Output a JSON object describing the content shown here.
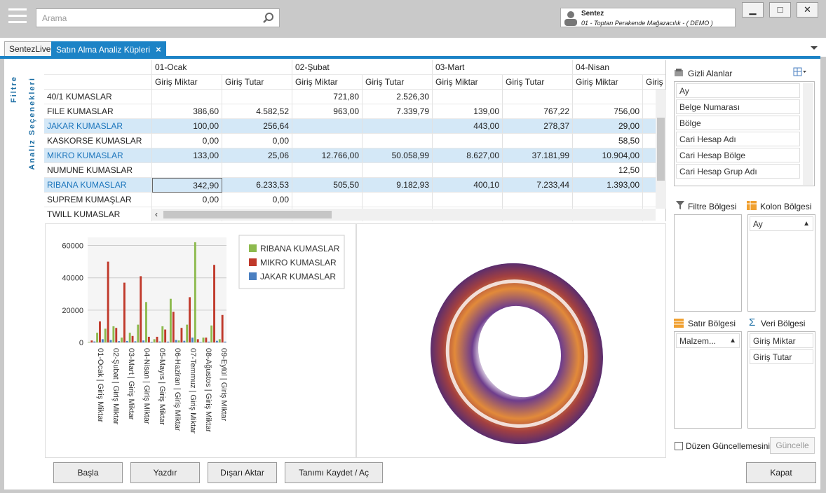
{
  "search": {
    "placeholder": "Arama"
  },
  "user": {
    "name": "Sentez",
    "company": "01 - Toptan Perakende Mağazacılık - ( DEMO )"
  },
  "window": {
    "minimize": "▁",
    "maximize": "□",
    "close": "✕"
  },
  "tabs": [
    {
      "label": "SentezLive"
    },
    {
      "label": "Satın Alma Analiz Küpleri",
      "close": "×"
    }
  ],
  "side": {
    "filter": "Filtre",
    "options": "Analiz Seçenekleri"
  },
  "grid": {
    "months": [
      "01-Ocak",
      "02-Şubat",
      "03-Mart",
      "04-Nisan"
    ],
    "subcols": [
      "Giriş Miktar",
      "Giriş Tutar",
      "Giriş Miktar",
      "Giriş Tutar",
      "Giriş Miktar",
      "Giriş Tutar",
      "Giriş Miktar",
      "Giriş T"
    ],
    "rows": [
      {
        "label": "40/1 KUMASLAR",
        "cells": [
          "",
          "",
          "721,80",
          "2.526,30",
          "",
          "",
          "",
          ""
        ]
      },
      {
        "label": "FILE KUMASLAR",
        "cells": [
          "386,60",
          "4.582,52",
          "963,00",
          "7.339,79",
          "139,00",
          "767,22",
          "756,00",
          ""
        ]
      },
      {
        "label": "JAKAR KUMASLAR",
        "cells": [
          "100,00",
          "256,64",
          "",
          "",
          "443,00",
          "278,37",
          "29,00",
          ""
        ]
      },
      {
        "label": "KASKORSE KUMASLAR",
        "cells": [
          "0,00",
          "0,00",
          "",
          "",
          "",
          "",
          "58,50",
          ""
        ]
      },
      {
        "label": "MIKRO KUMASLAR",
        "cells": [
          "133,00",
          "25,06",
          "12.766,00",
          "50.058,99",
          "8.627,00",
          "37.181,99",
          "10.904,00",
          ""
        ]
      },
      {
        "label": "NUMUNE KUMASLAR",
        "cells": [
          "",
          "",
          "",
          "",
          "",
          "",
          "12,50",
          ""
        ]
      },
      {
        "label": "RIBANA KUMASLAR",
        "cells": [
          "342,90",
          "6.233,53",
          "505,50",
          "9.182,93",
          "400,10",
          "7.233,44",
          "1.393,00",
          ""
        ]
      },
      {
        "label": "SUPREM KUMAŞLAR",
        "cells": [
          "0,00",
          "0,00",
          "",
          "",
          "",
          "",
          "",
          ""
        ]
      },
      {
        "label": "TWILL KUMASLAR",
        "cells": [
          "",
          "",
          "",
          "",
          "",
          "",
          "",
          ""
        ]
      }
    ]
  },
  "chart_data": {
    "type": "bar",
    "categories": [
      "01-Ocak | Giriş Miktar",
      "02-Şubat | Giriş Miktar",
      "03-Mart | Giriş Miktar",
      "04-Nisan | Giriş Miktar",
      "05-Mayıs | Giriş Miktar",
      "06-Haziran | Giriş Miktar",
      "07-Temmuz | Giriş Miktar",
      "08-Ağustos | Giriş Miktar",
      "09-Eylül | Giriş Miktar"
    ],
    "ylim": [
      0,
      65000
    ],
    "yticks": [
      "0",
      "20000",
      "40000",
      "60000"
    ],
    "grid": true,
    "legend_position": "right",
    "bar_colors": [
      "#8dba4e",
      "#c0392b",
      "#4a7fc1"
    ],
    "series": [
      {
        "name": "RIBANA KUMASLAR",
        "color": "#8dba4e"
      },
      {
        "name": "MIKRO KUMASLAR",
        "color": "#c0392b"
      },
      {
        "name": "JAKAR KUMASLAR",
        "color": "#4a7fc1"
      }
    ],
    "bars": [
      300,
      1200,
      600,
      6000,
      13000,
      2000,
      8500,
      50000,
      1500,
      10000,
      9000,
      800,
      3000,
      37000,
      900,
      6000,
      4000,
      700,
      11000,
      41000,
      1200,
      25000,
      3500,
      400,
      2000,
      3500,
      600,
      10000,
      8000,
      500,
      27000,
      19000,
      1500,
      1200,
      9000,
      1000,
      11000,
      28000,
      3000,
      62000,
      2000,
      300,
      3000,
      3000,
      500,
      10500,
      48000,
      1000,
      2000,
      17000,
      500
    ]
  },
  "rpanel": {
    "hidden_title": "Gizli Alanlar",
    "hidden_fields": [
      "Ay",
      "Belge Numarası",
      "Bölge",
      "Cari Hesap Adı",
      "Cari Hesap Bölge",
      "Cari Hesap Grup Adı"
    ],
    "filter_title": "Filtre Bölgesi",
    "column_title": "Kolon Bölgesi",
    "column_fields": [
      "Ay"
    ],
    "row_title": "Satır Bölgesi",
    "row_fields": [
      "Malzem..."
    ],
    "data_title": "Veri Bölgesi",
    "data_fields": [
      "Giriş Miktar",
      "Giriş Tutar"
    ],
    "defer_label": "Düzen Güncellemesini Ertele",
    "update_button": "Güncelle"
  },
  "buttons": {
    "start": "Başla",
    "print": "Yazdır",
    "export": "Dışarı Aktar",
    "save": "Tanımı Kaydet / Aç",
    "close": "Kapat"
  }
}
